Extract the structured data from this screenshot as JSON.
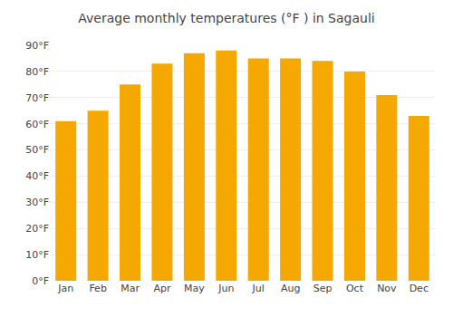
{
  "chart_data": {
    "type": "bar",
    "title": "Average monthly temperatures (°F ) in Sagauli",
    "categories": [
      "Jan",
      "Feb",
      "Mar",
      "Apr",
      "May",
      "Jun",
      "Jul",
      "Aug",
      "Sep",
      "Oct",
      "Nov",
      "Dec"
    ],
    "values": [
      61,
      65,
      75,
      83,
      87,
      88,
      85,
      85,
      84,
      80,
      71,
      63
    ],
    "color": "#F5A800",
    "ylim": [
      0,
      90
    ],
    "yticks": [
      {
        "value": 0,
        "label": "0°F"
      },
      {
        "value": 10,
        "label": "10°F"
      },
      {
        "value": 20,
        "label": "20°F"
      },
      {
        "value": 30,
        "label": "30°F"
      },
      {
        "value": 40,
        "label": "40°F"
      },
      {
        "value": 50,
        "label": "50°F"
      },
      {
        "value": 60,
        "label": "60°F"
      },
      {
        "value": 70,
        "label": "70°F"
      },
      {
        "value": 80,
        "label": "80°F"
      },
      {
        "value": 90,
        "label": "90°F"
      }
    ],
    "grid": true
  }
}
